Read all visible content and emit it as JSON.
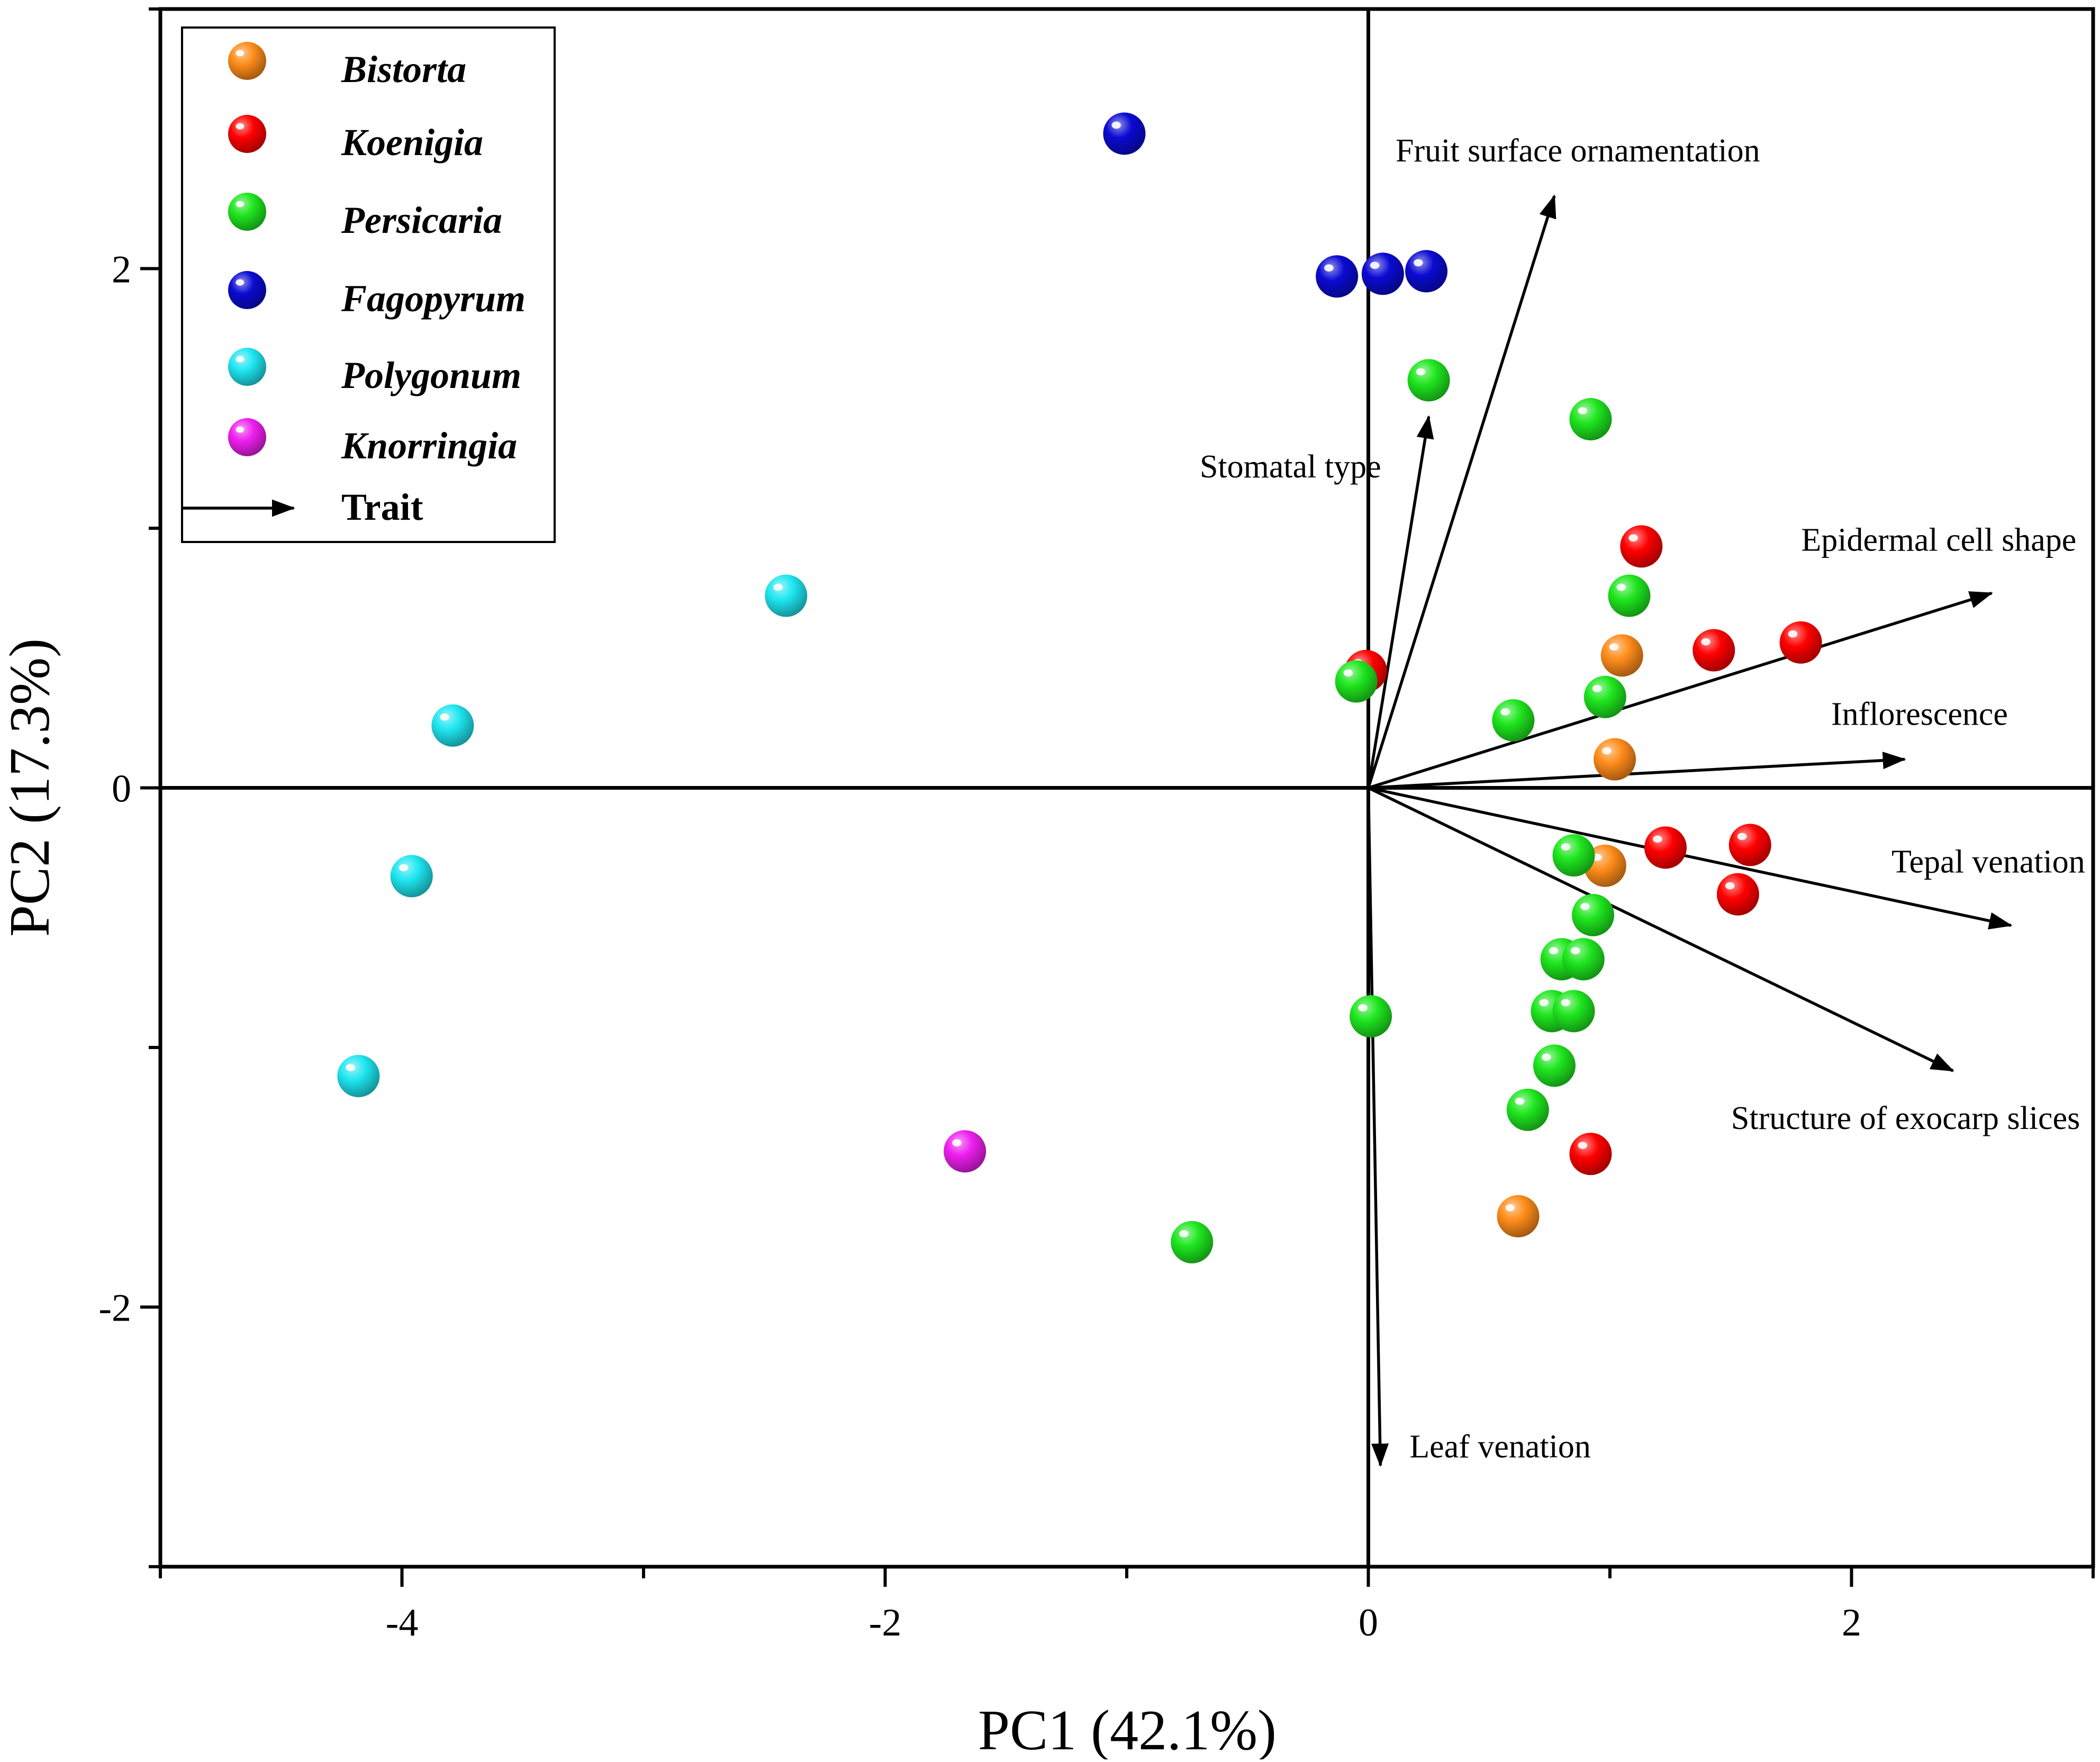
{
  "chart_data": {
    "type": "scatter",
    "subtype": "pca-biplot",
    "xlabel": "PC1 (42.1%)",
    "ylabel": "PC2 (17.3%)",
    "xlim": [
      -5,
      3
    ],
    "ylim": [
      -3,
      3
    ],
    "xticks": [
      -4,
      -2,
      0,
      2
    ],
    "yticks": [
      -2,
      0,
      2
    ],
    "xtick_labels": [
      "-4",
      "-2",
      "0",
      "2"
    ],
    "ytick_labels": [
      "-2",
      "0",
      "2"
    ],
    "grid": false,
    "reference_lines": {
      "x": 0,
      "y": 0
    },
    "legend_position": "top-left",
    "series": [
      {
        "name": "Bistorta",
        "color": "#ff8c1a",
        "points": [
          [
            1.05,
            0.51
          ],
          [
            1.02,
            0.11
          ],
          [
            0.98,
            -0.3
          ],
          [
            0.62,
            -1.65
          ]
        ]
      },
      {
        "name": "Koenigia",
        "color": "#ff0000",
        "points": [
          [
            1.13,
            0.93
          ],
          [
            1.43,
            0.53
          ],
          [
            1.79,
            0.56
          ],
          [
            -0.01,
            0.45
          ],
          [
            1.23,
            -0.23
          ],
          [
            1.58,
            -0.22
          ],
          [
            1.53,
            -0.41
          ],
          [
            0.92,
            -1.41
          ]
        ]
      },
      {
        "name": "Persicaria",
        "color": "#1ee61e",
        "points": [
          [
            0.25,
            1.57
          ],
          [
            0.92,
            1.42
          ],
          [
            1.08,
            0.74
          ],
          [
            0.98,
            0.35
          ],
          [
            0.6,
            0.26
          ],
          [
            -0.05,
            0.41
          ],
          [
            0.85,
            -0.26
          ],
          [
            0.93,
            -0.49
          ],
          [
            0.8,
            -0.66
          ],
          [
            0.89,
            -0.66
          ],
          [
            0.76,
            -0.86
          ],
          [
            0.85,
            -0.86
          ],
          [
            0.77,
            -1.07
          ],
          [
            0.66,
            -1.24
          ],
          [
            0.01,
            -0.88
          ],
          [
            -0.73,
            -1.75
          ]
        ]
      },
      {
        "name": "Fagopyrum",
        "color": "#0a0ad2",
        "points": [
          [
            -1.01,
            2.52
          ],
          [
            -0.13,
            1.97
          ],
          [
            0.06,
            1.98
          ],
          [
            0.24,
            1.99
          ]
        ]
      },
      {
        "name": "Polygonum",
        "color": "#1ee6f0",
        "points": [
          [
            -2.41,
            0.74
          ],
          [
            -3.79,
            0.24
          ],
          [
            -3.96,
            -0.34
          ],
          [
            -4.18,
            -1.11
          ]
        ]
      },
      {
        "name": "Knorringia",
        "color": "#ee1eee",
        "points": [
          [
            -1.67,
            -1.4
          ]
        ]
      }
    ],
    "trait_vectors": [
      {
        "name": "Fruit surface ornamentation",
        "x": 0.77,
        "y": 2.28
      },
      {
        "name": "Stomatal type",
        "x": 0.25,
        "y": 1.43
      },
      {
        "name": "Epidermal cell shape",
        "x": 2.58,
        "y": 0.75
      },
      {
        "name": "Inflorescence",
        "x": 2.22,
        "y": 0.11
      },
      {
        "name": "Tepal venation",
        "x": 2.66,
        "y": -0.53
      },
      {
        "name": "Structure of exocarp slices",
        "x": 2.42,
        "y": -1.09
      },
      {
        "name": "Leaf venation",
        "x": 0.05,
        "y": -2.61
      }
    ],
    "legend": {
      "entries": [
        "Bistorta",
        "Koenigia",
        "Persicaria",
        "Fagopyrum",
        "Polygonum",
        "Knorringia"
      ],
      "trait_label": "Trait"
    }
  }
}
